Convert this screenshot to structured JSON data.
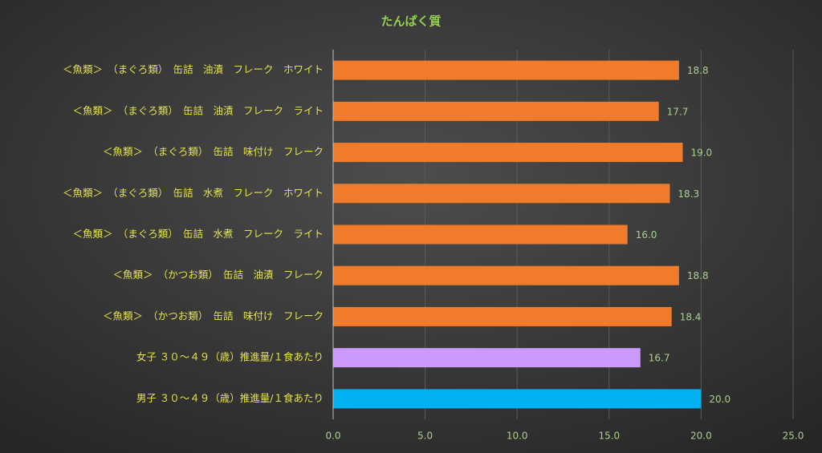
{
  "chart_data": {
    "type": "bar",
    "orientation": "horizontal",
    "title": "たんぱく質",
    "categories": [
      "＜魚類＞　（まぐろ類）　缶詰　油漬　フレーク　ホワイト",
      "＜魚類＞　（まぐろ類）　缶詰　油漬　フレーク　ライト",
      "＜魚類＞　（まぐろ類）　缶詰　味付け　フレーク",
      "＜魚類＞　（まぐろ類）　缶詰　水煮　フレーク　ホワイト",
      "＜魚類＞　（まぐろ類）　缶詰　水煮　フレーク　ライト",
      "＜魚類＞　（かつお類）　缶詰　油漬　フレーク",
      "＜魚類＞　（かつお類）　缶詰　味付け　フレーク",
      "女子 ３０～４９（歳）推進量/１食あたり",
      "男子 ３０～４９（歳）推進量/１食あたり"
    ],
    "values": [
      18.8,
      17.7,
      19.0,
      18.3,
      16.0,
      18.8,
      18.4,
      16.7,
      20.0
    ],
    "value_labels": [
      "18.8",
      "17.7",
      "19.0",
      "18.3",
      "16.0",
      "18.8",
      "18.4",
      "16.7",
      "20.0"
    ],
    "colors": [
      "#f07b2b",
      "#f07b2b",
      "#f07b2b",
      "#f07b2b",
      "#f07b2b",
      "#f07b2b",
      "#f07b2b",
      "#cc99ff",
      "#00b0f0"
    ],
    "xlim": [
      0,
      25
    ],
    "xticks": [
      {
        "value": 0,
        "label": "0.0"
      },
      {
        "value": 5,
        "label": "5.0"
      },
      {
        "value": 10,
        "label": "10.0"
      },
      {
        "value": 15,
        "label": "15.0"
      },
      {
        "value": 20,
        "label": "20.0"
      },
      {
        "value": 25,
        "label": "25.0"
      }
    ],
    "grid": true
  }
}
